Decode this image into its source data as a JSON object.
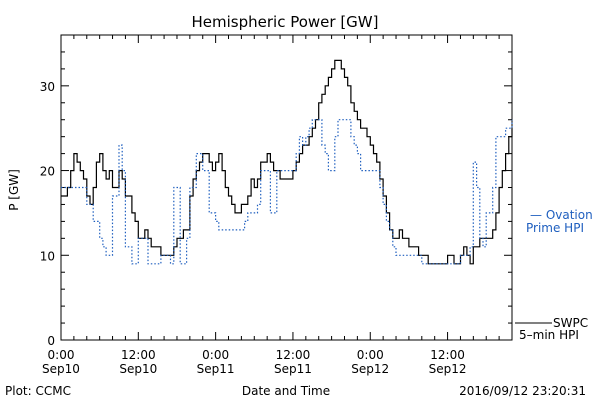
{
  "chart_data": {
    "type": "line",
    "title": "Hemispheric Power [GW]",
    "xlabel": "Date and Time",
    "ylabel": "P [GW]",
    "xlim": [
      0,
      70
    ],
    "ylim": [
      0,
      36
    ],
    "y_ticks": [
      0,
      10,
      20,
      30
    ],
    "x_ticks": [
      {
        "t": 0,
        "line1": "0:00",
        "line2": "Sep10"
      },
      {
        "t": 12,
        "line1": "12:00",
        "line2": "Sep10"
      },
      {
        "t": 24,
        "line1": "0:00",
        "line2": "Sep11"
      },
      {
        "t": 36,
        "line1": "12:00",
        "line2": "Sep11"
      },
      {
        "t": 48,
        "line1": "0:00",
        "line2": "Sep12"
      },
      {
        "t": 60,
        "line1": "12:00",
        "line2": "Sep12"
      }
    ],
    "x_unit_note": "hours from 0:00 Sep10",
    "series": [
      {
        "name": "SWPC 5-min HPI",
        "color": "#000000",
        "style": "solid",
        "points": [
          [
            0,
            17
          ],
          [
            1,
            18
          ],
          [
            1.5,
            20
          ],
          [
            2,
            22
          ],
          [
            2.5,
            21
          ],
          [
            3,
            20
          ],
          [
            3.5,
            19
          ],
          [
            4,
            17
          ],
          [
            4.5,
            16
          ],
          [
            5,
            18
          ],
          [
            5.5,
            21
          ],
          [
            6,
            22
          ],
          [
            6.5,
            20
          ],
          [
            7,
            19
          ],
          [
            7.5,
            20
          ],
          [
            8,
            18
          ],
          [
            8.5,
            18
          ],
          [
            9,
            20
          ],
          [
            9.5,
            19
          ],
          [
            10,
            17
          ],
          [
            10.5,
            17
          ],
          [
            11,
            15
          ],
          [
            11.5,
            14
          ],
          [
            12,
            12
          ],
          [
            12.5,
            12
          ],
          [
            13,
            13
          ],
          [
            13.5,
            12
          ],
          [
            14,
            11
          ],
          [
            15,
            11
          ],
          [
            15.5,
            10
          ],
          [
            16,
            10
          ],
          [
            17,
            10
          ],
          [
            17.5,
            11
          ],
          [
            18,
            12
          ],
          [
            19,
            13
          ],
          [
            20,
            17
          ],
          [
            20.5,
            19
          ],
          [
            21,
            20
          ],
          [
            21.5,
            21
          ],
          [
            22,
            22
          ],
          [
            23,
            21
          ],
          [
            23.5,
            20
          ],
          [
            24,
            21
          ],
          [
            24.5,
            22
          ],
          [
            25,
            20
          ],
          [
            25.5,
            18
          ],
          [
            26,
            17
          ],
          [
            26.5,
            16
          ],
          [
            27,
            15
          ],
          [
            27.5,
            15
          ],
          [
            28,
            16
          ],
          [
            29,
            17
          ],
          [
            29.5,
            19
          ],
          [
            30,
            18
          ],
          [
            30.5,
            19
          ],
          [
            31,
            21
          ],
          [
            32,
            22
          ],
          [
            32.5,
            21
          ],
          [
            33,
            20
          ],
          [
            33.5,
            20
          ],
          [
            34,
            19
          ],
          [
            35,
            19
          ],
          [
            36,
            20
          ],
          [
            36.5,
            21
          ],
          [
            37,
            22
          ],
          [
            37.5,
            23
          ],
          [
            38,
            23
          ],
          [
            38.5,
            24
          ],
          [
            39,
            25
          ],
          [
            39.5,
            26
          ],
          [
            40,
            28
          ],
          [
            40.5,
            29
          ],
          [
            41,
            30
          ],
          [
            41.5,
            31
          ],
          [
            42,
            32
          ],
          [
            42.5,
            33
          ],
          [
            43,
            33
          ],
          [
            43.5,
            32
          ],
          [
            44,
            31
          ],
          [
            44.5,
            30
          ],
          [
            45,
            28
          ],
          [
            45.5,
            27
          ],
          [
            46,
            26
          ],
          [
            46.5,
            25
          ],
          [
            47,
            25
          ],
          [
            47.5,
            24
          ],
          [
            48,
            23
          ],
          [
            48.5,
            22
          ],
          [
            49,
            21
          ],
          [
            49.5,
            19
          ],
          [
            50,
            17
          ],
          [
            50.5,
            15
          ],
          [
            51,
            13
          ],
          [
            51.5,
            12
          ],
          [
            52,
            12
          ],
          [
            52.5,
            13
          ],
          [
            53,
            12
          ],
          [
            54,
            11
          ],
          [
            55,
            11
          ],
          [
            55.5,
            10
          ],
          [
            56,
            10
          ],
          [
            57,
            9
          ],
          [
            58,
            9
          ],
          [
            59,
            9
          ],
          [
            60,
            10
          ],
          [
            60.5,
            10
          ],
          [
            61,
            9
          ],
          [
            62,
            10
          ],
          [
            62.5,
            11
          ],
          [
            63,
            10
          ],
          [
            63.5,
            9
          ],
          [
            64,
            11
          ],
          [
            65,
            12
          ],
          [
            66,
            12
          ],
          [
            67,
            13
          ],
          [
            67.5,
            15
          ],
          [
            68,
            18
          ],
          [
            68.5,
            20
          ],
          [
            69,
            22
          ],
          [
            69.5,
            24
          ],
          [
            70,
            25
          ]
        ]
      },
      {
        "name": "Ovation Prime HPI",
        "color": "#1f5fbf",
        "style": "dotted",
        "points": [
          [
            0,
            18
          ],
          [
            2,
            18
          ],
          [
            3,
            18
          ],
          [
            4,
            16
          ],
          [
            5,
            14
          ],
          [
            6,
            12
          ],
          [
            6.5,
            11
          ],
          [
            7,
            10
          ],
          [
            8,
            17
          ],
          [
            9,
            23
          ],
          [
            9.5,
            20
          ],
          [
            10,
            11
          ],
          [
            11,
            9
          ],
          [
            12,
            12
          ],
          [
            13,
            12
          ],
          [
            13.5,
            9
          ],
          [
            15,
            9
          ],
          [
            15.5,
            10
          ],
          [
            16,
            10
          ],
          [
            17,
            9
          ],
          [
            17.5,
            18
          ],
          [
            18,
            18
          ],
          [
            18.5,
            9
          ],
          [
            19,
            9
          ],
          [
            19.5,
            12
          ],
          [
            20,
            18
          ],
          [
            21,
            22
          ],
          [
            22,
            20
          ],
          [
            23,
            15
          ],
          [
            24,
            14
          ],
          [
            24.5,
            13
          ],
          [
            27,
            13
          ],
          [
            28,
            13
          ],
          [
            28.5,
            14
          ],
          [
            29,
            15
          ],
          [
            30,
            15
          ],
          [
            30.5,
            16
          ],
          [
            31,
            20
          ],
          [
            32,
            20
          ],
          [
            32.5,
            15
          ],
          [
            33,
            15
          ],
          [
            33.5,
            20
          ],
          [
            35,
            20
          ],
          [
            36,
            20
          ],
          [
            36.5,
            22
          ],
          [
            37,
            24
          ],
          [
            37.5,
            23
          ],
          [
            38,
            24
          ],
          [
            38.5,
            25
          ],
          [
            39,
            26
          ],
          [
            40,
            26
          ],
          [
            40.5,
            23
          ],
          [
            41,
            22
          ],
          [
            41.5,
            20
          ],
          [
            42,
            20
          ],
          [
            42.5,
            24
          ],
          [
            43,
            26
          ],
          [
            44,
            26
          ],
          [
            45,
            24
          ],
          [
            45.5,
            23
          ],
          [
            46,
            22
          ],
          [
            46.5,
            20
          ],
          [
            48,
            20
          ],
          [
            49,
            20
          ],
          [
            49.5,
            18
          ],
          [
            50,
            16
          ],
          [
            50.5,
            14
          ],
          [
            51,
            13
          ],
          [
            51.5,
            11
          ],
          [
            52,
            10
          ],
          [
            53,
            10
          ],
          [
            54,
            10
          ],
          [
            55,
            10
          ],
          [
            56,
            9
          ],
          [
            58,
            9
          ],
          [
            59,
            9
          ],
          [
            60,
            9
          ],
          [
            61,
            9
          ],
          [
            62,
            10
          ],
          [
            63,
            10
          ],
          [
            63.5,
            11
          ],
          [
            64,
            21
          ],
          [
            64.5,
            18
          ],
          [
            65,
            12
          ],
          [
            65.5,
            11
          ],
          [
            66,
            15
          ],
          [
            67,
            18
          ],
          [
            67.5,
            24
          ],
          [
            68,
            24
          ],
          [
            69,
            25
          ],
          [
            70,
            26
          ]
        ]
      }
    ],
    "legend": [
      {
        "line1": "— Ovation",
        "line2": "Prime HPI",
        "color": "#1f5fbf"
      },
      {
        "line1": "SWPC",
        "line2": "5–min HPI",
        "color": "#000000"
      }
    ]
  },
  "footer": {
    "left": "Plot: CCMC",
    "center": "Date and Time",
    "right": "2016/09/12 23:20:31"
  }
}
